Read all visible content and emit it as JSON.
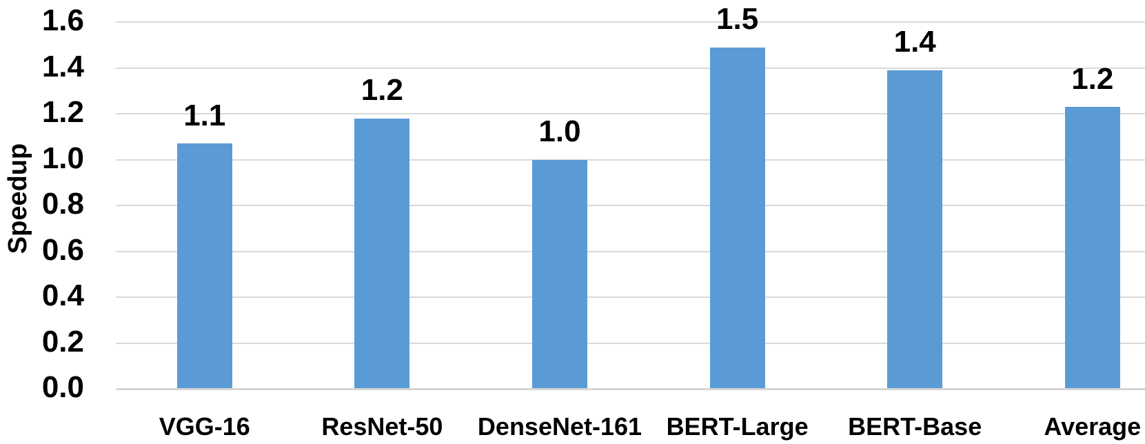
{
  "chart_data": {
    "type": "bar",
    "title": "",
    "xlabel": "",
    "ylabel": "Speedup",
    "categories": [
      "VGG-16",
      "ResNet-50",
      "DenseNet-161",
      "BERT-Large",
      "BERT-Base",
      "Average"
    ],
    "values": [
      1.07,
      1.18,
      1.0,
      1.49,
      1.39,
      1.23
    ],
    "bar_labels": [
      "1.1",
      "1.2",
      "1.0",
      "1.5",
      "1.4",
      "1.2"
    ],
    "yticks": [
      "0.0",
      "0.2",
      "0.4",
      "0.6",
      "0.8",
      "1.0",
      "1.2",
      "1.4",
      "1.6"
    ],
    "ylim": [
      0.0,
      1.6
    ],
    "grid": true,
    "legend": false,
    "colors": {
      "bar": "#5B9BD5",
      "gridline": "#D9D9D9",
      "axis_line": "#D5D5D5",
      "text": "#000000",
      "background": "#FFFFFF"
    }
  }
}
